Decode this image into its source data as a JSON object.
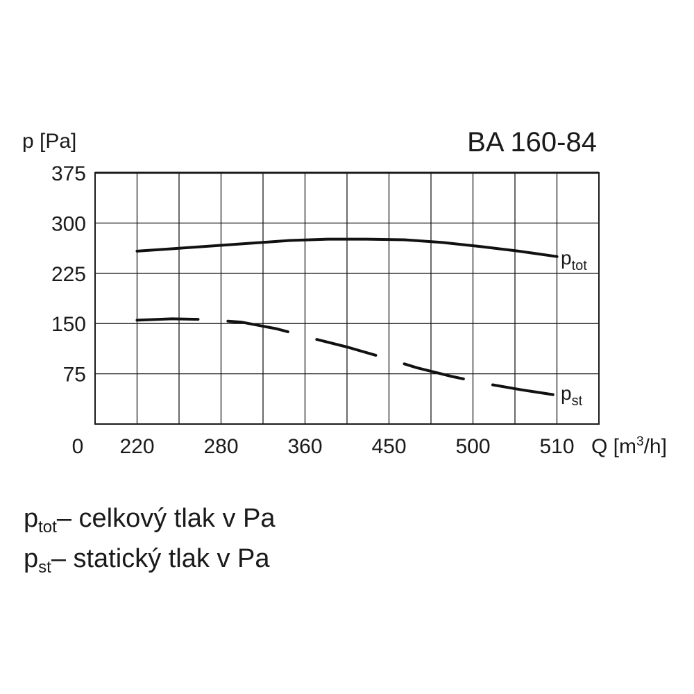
{
  "chart_data": {
    "type": "line",
    "title": "BA 160-84",
    "ylabel": "p [Pa]",
    "xlabel_prefix": "Q [m",
    "xlabel_sup": "3",
    "xlabel_suffix": "/h]",
    "x_origin_label": "0",
    "x_tick_labels": [
      "220",
      "280",
      "360",
      "450",
      "500",
      "510"
    ],
    "y_ticks": [
      75,
      150,
      225,
      300,
      375
    ],
    "ylim": [
      0,
      375
    ],
    "grid": true,
    "series": [
      {
        "name_main": "p",
        "name_sub": "tot",
        "style": "solid",
        "values": [
          258,
          262,
          266,
          270,
          274,
          276,
          276,
          275,
          271,
          265,
          258,
          250
        ]
      },
      {
        "name_main": "p",
        "name_sub": "st",
        "style": "dashed",
        "values": [
          155,
          157,
          156,
          152,
          142,
          128,
          115,
          100,
          84,
          71,
          60,
          51,
          43
        ]
      }
    ]
  },
  "legend": {
    "tot": {
      "main": "p",
      "sub": "tot",
      "text": "– celkový tlak v Pa"
    },
    "st": {
      "main": "p",
      "sub": "st",
      "text": "– statický  tlak v Pa"
    }
  }
}
